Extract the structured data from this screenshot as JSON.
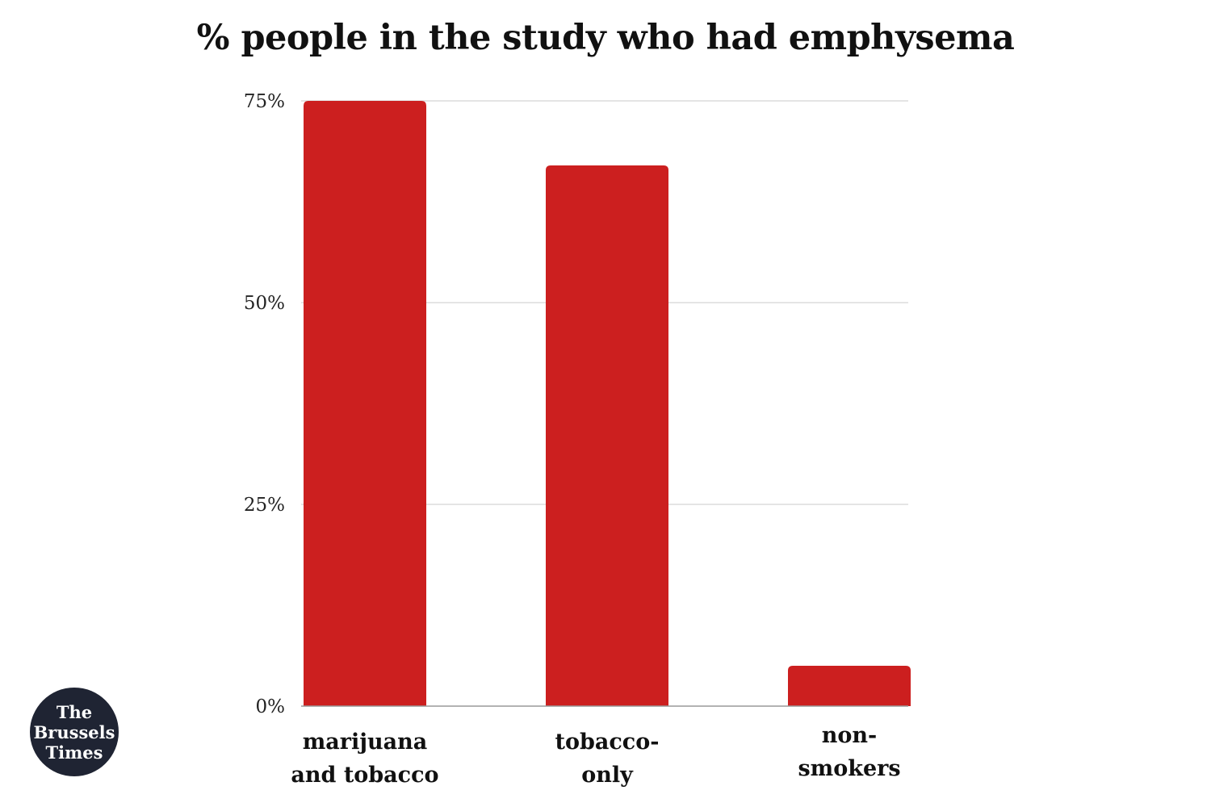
{
  "chart_data": {
    "type": "bar",
    "title": "% people in the study who had emphysema",
    "categories": [
      "marijuana and tobacco",
      "tobacco-only",
      "non-smokers"
    ],
    "category_lines": [
      [
        "marijuana",
        "and tobacco"
      ],
      [
        "tobacco-",
        "only"
      ],
      [
        "non-",
        "smokers"
      ]
    ],
    "values": [
      75,
      67,
      5
    ],
    "ylim": [
      0,
      75
    ],
    "yticks": [
      0,
      25,
      50,
      75
    ],
    "ytick_labels": [
      "0%",
      "25%",
      "50%",
      "75%"
    ],
    "xlabel": "",
    "ylabel": "",
    "grid": true,
    "bar_color": "#cc1f1f"
  },
  "logo": {
    "line1": "The",
    "line2": "Brussels",
    "line3": "Times"
  }
}
